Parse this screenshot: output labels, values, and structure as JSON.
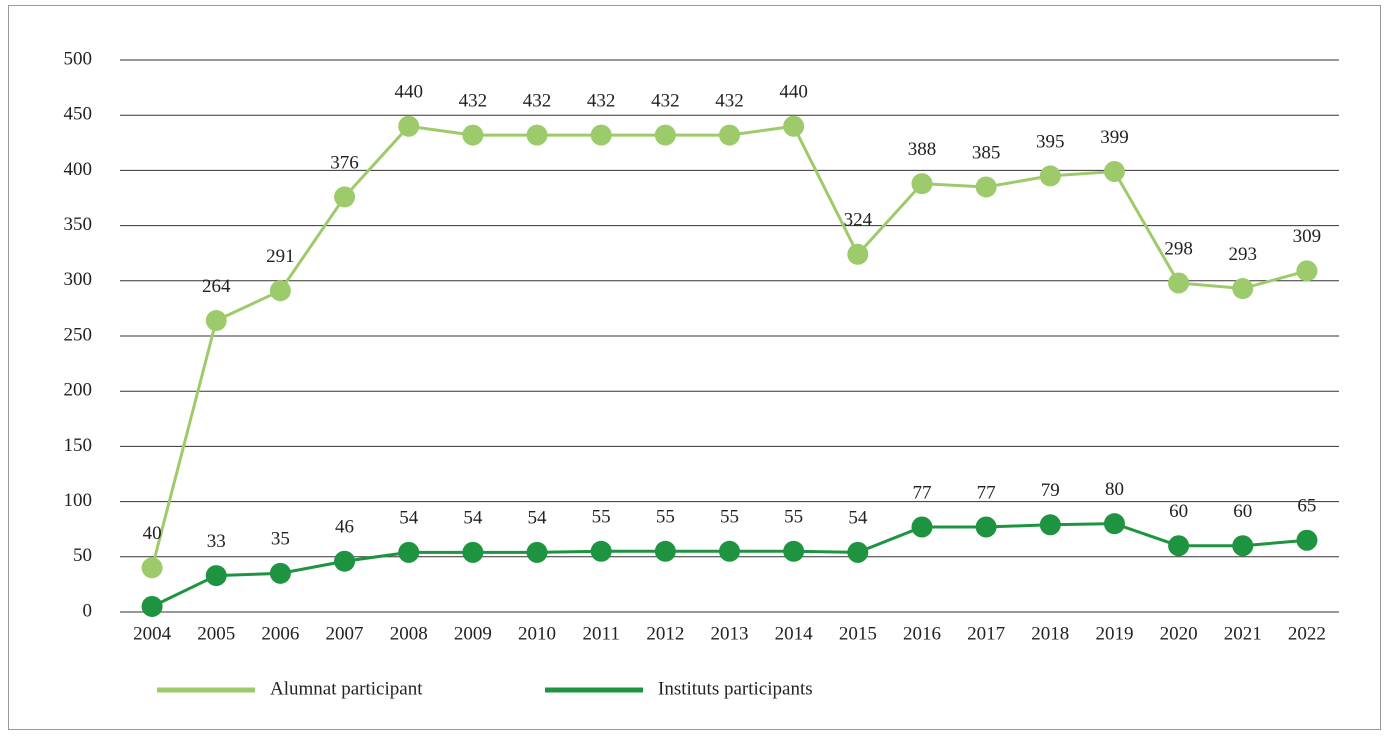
{
  "chart_data": {
    "type": "line",
    "categories": [
      "2004",
      "2005",
      "2006",
      "2007",
      "2008",
      "2009",
      "2010",
      "2011",
      "2012",
      "2013",
      "2014",
      "2015",
      "2016",
      "2017",
      "2018",
      "2019",
      "2020",
      "2021",
      "2022"
    ],
    "series": [
      {
        "name": "Alumnat participant",
        "color": "#9dcb6b",
        "values": [
          40,
          264,
          291,
          376,
          440,
          432,
          432,
          432,
          432,
          432,
          440,
          324,
          388,
          385,
          395,
          399,
          298,
          293,
          309
        ]
      },
      {
        "name": "Instituts participants",
        "color": "#1e9440",
        "values": [
          5,
          33,
          35,
          46,
          54,
          54,
          54,
          55,
          55,
          55,
          55,
          54,
          77,
          77,
          79,
          80,
          60,
          60,
          65
        ],
        "value_labels": [
          null,
          "33",
          "35",
          "46",
          "54",
          "54",
          "54",
          "55",
          "55",
          "55",
          "55",
          "54",
          "77",
          "77",
          "79",
          "80",
          "60",
          "60",
          "65"
        ]
      }
    ],
    "ylim": [
      0,
      500
    ],
    "yticks": [
      0,
      50,
      100,
      150,
      200,
      250,
      300,
      350,
      400,
      450,
      500
    ],
    "grid": true,
    "legend": "bottom"
  }
}
